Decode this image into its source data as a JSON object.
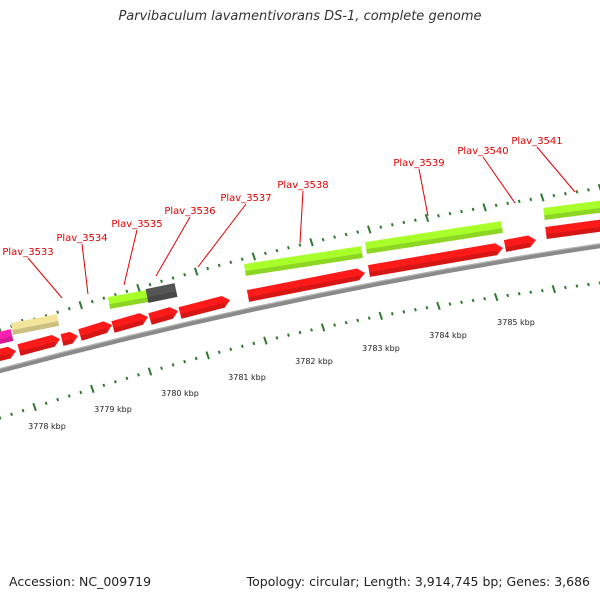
{
  "header": {
    "title": "Parvibaculum lavamentivorans DS-1, complete genome"
  },
  "footer": {
    "accession": "Accession: NC_009719",
    "summary": "Topology: circular; Length: 3,914,745 bp; Genes: 3,686"
  },
  "colors": {
    "cds_forward_top": "#a8ff2a",
    "cds_reverse": "#ff1a1a",
    "pseudo_khaki": "#f2e49a",
    "gray_block": "#555555",
    "magenta": "#ff1fb0",
    "backbone": "#8a8a8a",
    "gene_label": "#e00000",
    "ruler_tick": "#2f7a2f"
  },
  "ruler_labels": [
    {
      "text": "3778 kbp"
    },
    {
      "text": "3779 kbp"
    },
    {
      "text": "3780 kbp"
    },
    {
      "text": "3781 kbp"
    },
    {
      "text": "3782 kbp"
    },
    {
      "text": "3783 kbp"
    },
    {
      "text": "3784 kbp"
    },
    {
      "text": "3785 kbp"
    }
  ],
  "gene_labels": [
    {
      "text": "Plav_3533"
    },
    {
      "text": "Plav_3534"
    },
    {
      "text": "Plav_3535"
    },
    {
      "text": "Plav_3536"
    },
    {
      "text": "Plav_3537"
    },
    {
      "text": "Plav_3538"
    },
    {
      "text": "Plav_3539"
    },
    {
      "text": "Plav_3540"
    },
    {
      "text": "Plav_3541"
    }
  ]
}
